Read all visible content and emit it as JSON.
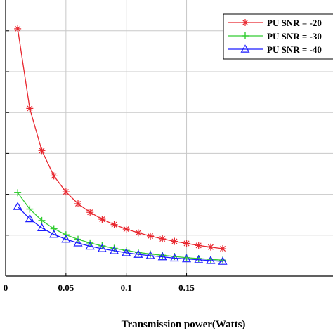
{
  "chart_data": {
    "type": "line",
    "title": "",
    "xlabel": "Transmission power(Watts)",
    "ylabel": "",
    "xlim": [
      0,
      0.18
    ],
    "ylim": [
      0,
      0.7
    ],
    "grid": true,
    "legend_position": "top-right",
    "x_ticks": [
      {
        "value": 0,
        "label": "0"
      },
      {
        "value": 0.05,
        "label": "0.05"
      },
      {
        "value": 0.1,
        "label": "0.1"
      },
      {
        "value": 0.15,
        "label": "0.15"
      }
    ],
    "y_gridlines": [
      0.1,
      0.2,
      0.3,
      0.4,
      0.5,
      0.6
    ],
    "x": [
      0.01,
      0.02,
      0.03,
      0.04,
      0.05,
      0.06,
      0.07,
      0.08,
      0.09,
      0.1,
      0.11,
      0.12,
      0.13,
      0.14,
      0.15,
      0.16,
      0.17,
      0.18
    ],
    "series": [
      {
        "name": "PU SNR = -20",
        "color": "#e8262e",
        "marker": "asterisk",
        "values": [
          0.605,
          0.41,
          0.307,
          0.245,
          0.206,
          0.177,
          0.156,
          0.139,
          0.126,
          0.115,
          0.106,
          0.098,
          0.091,
          0.085,
          0.08,
          0.075,
          0.071,
          0.067
        ]
      },
      {
        "name": "PU SNR = -30",
        "color": "#33cc33",
        "marker": "plus",
        "values": [
          0.204,
          0.164,
          0.136,
          0.116,
          0.101,
          0.09,
          0.081,
          0.074,
          0.068,
          0.063,
          0.058,
          0.054,
          0.051,
          0.048,
          0.045,
          0.043,
          0.041,
          0.039
        ]
      },
      {
        "name": "PU SNR = -40",
        "color": "#1a1aff",
        "marker": "triangle",
        "values": [
          0.17,
          0.14,
          0.118,
          0.102,
          0.09,
          0.081,
          0.073,
          0.067,
          0.062,
          0.057,
          0.053,
          0.05,
          0.047,
          0.044,
          0.042,
          0.04,
          0.038,
          0.036
        ]
      }
    ]
  }
}
